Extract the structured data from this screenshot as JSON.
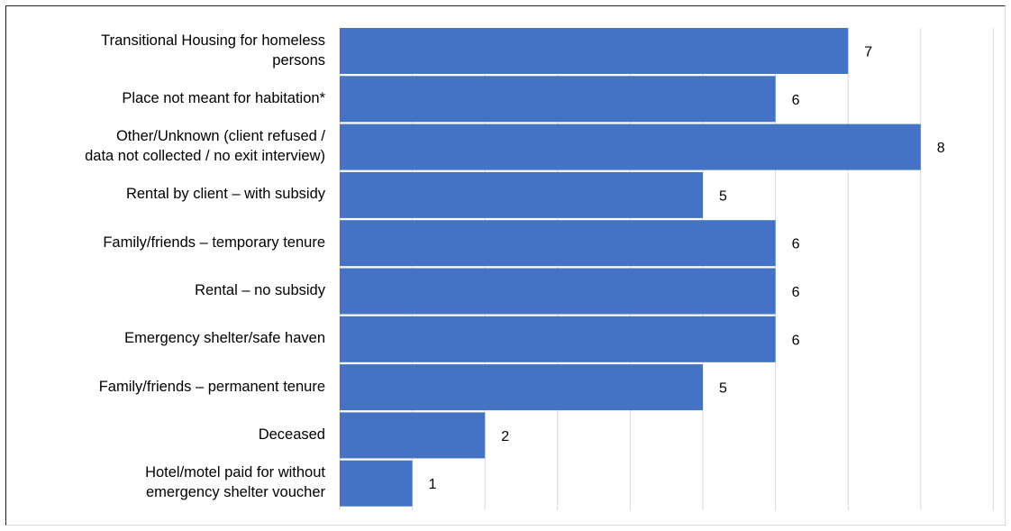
{
  "chart_data": {
    "type": "bar",
    "orientation": "horizontal",
    "categories": [
      [
        "Transitional Housing for homeless",
        "persons"
      ],
      [
        "Place not meant for habitation*"
      ],
      [
        "Other/Unknown (client refused /",
        "data not collected / no exit interview)"
      ],
      [
        "Rental by client – with subsidy"
      ],
      [
        "Family/friends – temporary tenure"
      ],
      [
        "Rental – no subsidy"
      ],
      [
        "Emergency shelter/safe haven"
      ],
      [
        "Family/friends – permanent tenure"
      ],
      [
        "Deceased"
      ],
      [
        "Hotel/motel paid for without",
        "emergency shelter voucher"
      ]
    ],
    "values": [
      7,
      6,
      8,
      5,
      6,
      6,
      6,
      5,
      2,
      1
    ],
    "data_labels": [
      "7",
      "6",
      "8",
      "5",
      "6",
      "6",
      "6",
      "5",
      "2",
      "1"
    ],
    "xlim": [
      0,
      9
    ],
    "grid": true,
    "bar_color": "#4472C4",
    "grid_color": "#d9d9d9",
    "title": "",
    "xlabel": "",
    "ylabel": ""
  }
}
